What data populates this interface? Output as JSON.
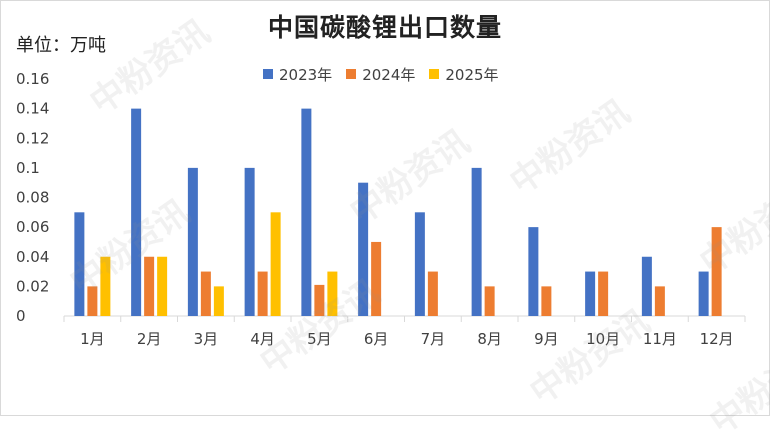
{
  "title": "中国碳酸锂出口数量",
  "unit": "单位：万吨",
  "watermark": "中粉资讯",
  "colors": {
    "2023年": "#4472C4",
    "2024年": "#ED7D31",
    "2025年": "#FFC000"
  },
  "chart_data": {
    "type": "bar",
    "title": "中国碳酸锂出口数量",
    "ylabel": "单位：万吨",
    "categories": [
      "1月",
      "2月",
      "3月",
      "4月",
      "5月",
      "6月",
      "7月",
      "8月",
      "9月",
      "10月",
      "11月",
      "12月"
    ],
    "y_ticks": [
      "0",
      "0.02",
      "0.04",
      "0.06",
      "0.08",
      "0.1",
      "0.12",
      "0.14",
      "0.16"
    ],
    "ylim": [
      0,
      0.16
    ],
    "legend_position": "top-center",
    "grid": false,
    "series": [
      {
        "name": "2023年",
        "color": "#4472C4",
        "values": [
          0.07,
          0.14,
          0.1,
          0.1,
          0.14,
          0.09,
          0.07,
          0.1,
          0.06,
          0.03,
          0.04,
          0.03
        ]
      },
      {
        "name": "2024年",
        "color": "#ED7D31",
        "values": [
          0.02,
          0.04,
          0.03,
          0.03,
          0.021,
          0.05,
          0.03,
          0.02,
          0.02,
          0.03,
          0.02,
          0.06
        ]
      },
      {
        "name": "2025年",
        "color": "#FFC000",
        "values": [
          0.04,
          0.04,
          0.02,
          0.07,
          0.03,
          null,
          null,
          null,
          null,
          null,
          null,
          null
        ]
      }
    ]
  }
}
